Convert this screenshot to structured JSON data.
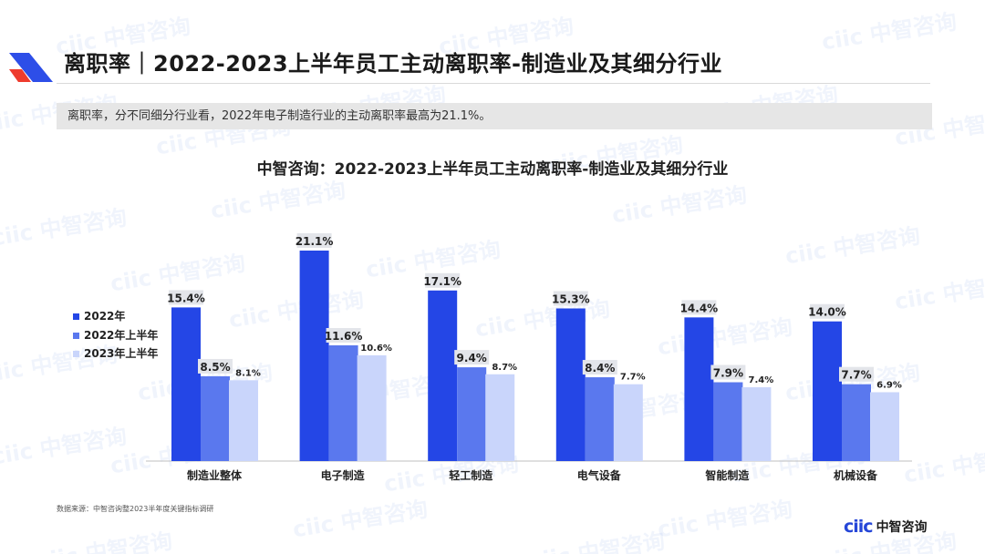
{
  "header": {
    "title": "离职率｜2022-2023上半年员工主动离职率-制造业及其细分行业",
    "summary": "离职率，分不同细分行业看，2022年电子制造行业的主动离职率最高为21.1%。"
  },
  "footer": {
    "source": "数据来源：中智咨询整2023半年度关键指标调研",
    "brand_mark": "ciic",
    "brand_name": "中智咨询"
  },
  "watermark_text": "ciic 中智咨询",
  "colors": {
    "series_2022": "#2446e6",
    "series_2022h1": "#5a78ee",
    "series_2023h1": "#c9d5fb",
    "label_bg": "#e3e5ea",
    "accent_blue": "#2546d8",
    "accent_red": "#ee3b2e"
  },
  "chart_data": {
    "type": "bar",
    "title": "中智咨询：2022-2023上半年员工主动离职率-制造业及其细分行业",
    "categories": [
      "制造业整体",
      "电子制造",
      "轻工制造",
      "电气设备",
      "智能制造",
      "机械设备"
    ],
    "series": [
      {
        "name": "2022年",
        "values": [
          15.4,
          21.1,
          17.1,
          15.3,
          14.4,
          14.0
        ]
      },
      {
        "name": "2022年上半年",
        "values": [
          8.5,
          11.6,
          9.4,
          8.4,
          7.9,
          7.7
        ]
      },
      {
        "name": "2023年上半年",
        "values": [
          8.1,
          10.6,
          8.7,
          7.7,
          7.4,
          6.9
        ]
      }
    ],
    "unit": "%",
    "ylim": [
      0,
      21.1
    ],
    "xlabel": "",
    "ylabel": "",
    "grid": false,
    "legend_position": "left"
  }
}
